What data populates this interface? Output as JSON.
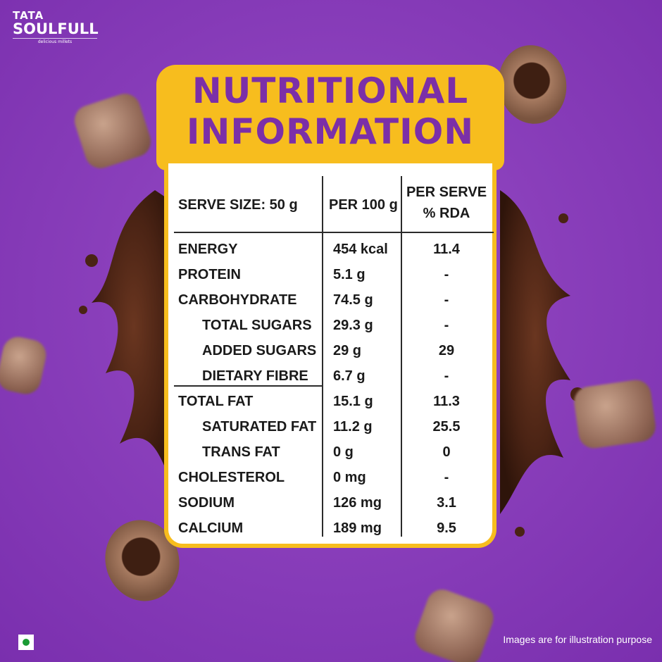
{
  "brand": {
    "top": "TATA",
    "name": "SOULFULL",
    "tagline": "delicious millets"
  },
  "title": {
    "line1": "NUTRITIONAL",
    "line2": "INFORMATION"
  },
  "table": {
    "header": {
      "col1": "SERVE SIZE: 50 g",
      "col2": "PER 100 g",
      "col3_line1": "PER SERVE",
      "col3_line2": "% RDA"
    },
    "rows": [
      {
        "nutrient": "ENERGY",
        "per100": "454 kcal",
        "rda": "11.4"
      },
      {
        "nutrient": "PROTEIN",
        "per100": "5.1 g",
        "rda": "-"
      },
      {
        "nutrient": "CARBOHYDRATE",
        "per100": "74.5 g",
        "rda": "-"
      },
      {
        "nutrient": "TOTAL SUGARS",
        "per100": "29.3 g",
        "rda": "-"
      },
      {
        "nutrient": "ADDED SUGARS",
        "per100": "29 g",
        "rda": "29"
      },
      {
        "nutrient": "DIETARY FIBRE",
        "per100": "6.7 g",
        "rda": "-"
      },
      {
        "nutrient": "TOTAL FAT",
        "per100": "15.1 g",
        "rda": "11.3"
      },
      {
        "nutrient": "SATURATED FAT",
        "per100": "11.2 g",
        "rda": "25.5"
      },
      {
        "nutrient": "TRANS FAT",
        "per100": "0 g",
        "rda": "0"
      },
      {
        "nutrient": "CHOLESTEROL",
        "per100": "0 mg",
        "rda": "-"
      },
      {
        "nutrient": "SODIUM",
        "per100": "126 mg",
        "rda": "3.1"
      },
      {
        "nutrient": "CALCIUM",
        "per100": "189 mg",
        "rda": "9.5"
      }
    ]
  },
  "footer": {
    "disclaimer": "Images are for illustration purpose"
  },
  "colors": {
    "background": "#8a3fbb",
    "accent_yellow": "#f7bd1e",
    "title_purple": "#7b2fa8",
    "veg_green": "#1a9b35"
  }
}
